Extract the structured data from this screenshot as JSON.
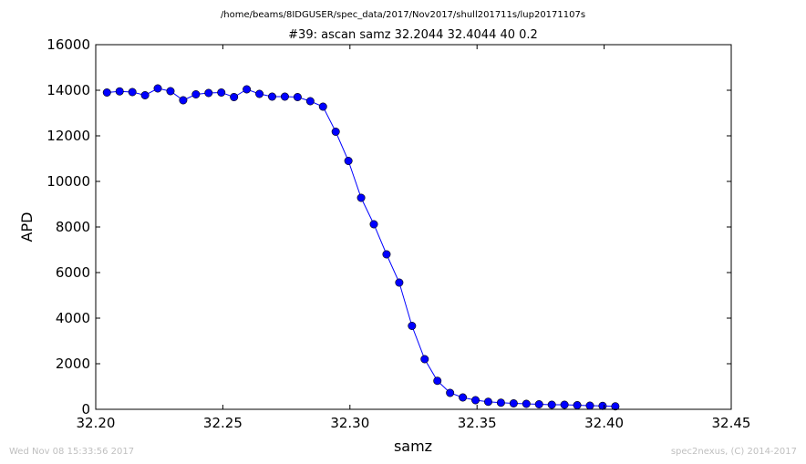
{
  "header": {
    "path": "/home/beams/8IDGUSER/spec_data/2017/Nov2017/shull201711s/lup20171107s"
  },
  "footer": {
    "timestamp": "Wed Nov 08 15:33:56 2017",
    "credit": "spec2nexus, (C) 2014-2017"
  },
  "chart_data": {
    "type": "line",
    "title": "#39: ascan  samz 32.2044 32.4044  40 0.2",
    "xlabel": "samz",
    "ylabel": "APD",
    "xlim": [
      32.2,
      32.45
    ],
    "ylim": [
      0,
      16000
    ],
    "xticks": [
      "32.20",
      "32.25",
      "32.30",
      "32.35",
      "32.40",
      "32.45"
    ],
    "yticks": [
      "0",
      "2000",
      "4000",
      "6000",
      "8000",
      "10000",
      "12000",
      "14000",
      "16000"
    ],
    "grid": false,
    "line_color": "#0000ff",
    "marker": "circle",
    "x": [
      32.2044,
      32.2094,
      32.2144,
      32.2194,
      32.2244,
      32.2294,
      32.2344,
      32.2394,
      32.2444,
      32.2494,
      32.2544,
      32.2594,
      32.2644,
      32.2694,
      32.2744,
      32.2794,
      32.2844,
      32.2894,
      32.2944,
      32.2994,
      32.3044,
      32.3094,
      32.3144,
      32.3194,
      32.3244,
      32.3294,
      32.3344,
      32.3394,
      32.3444,
      32.3494,
      32.3544,
      32.3594,
      32.3644,
      32.3694,
      32.3744,
      32.3794,
      32.3844,
      32.3894,
      32.3944,
      32.3994,
      32.4044
    ],
    "y": [
      13900,
      13950,
      13920,
      13780,
      14080,
      13960,
      13560,
      13820,
      13880,
      13900,
      13700,
      14040,
      13840,
      13720,
      13720,
      13700,
      13520,
      13280,
      12180,
      10900,
      9280,
      8120,
      6800,
      5560,
      3660,
      2200,
      1250,
      720,
      520,
      400,
      330,
      290,
      260,
      240,
      220,
      200,
      200,
      180,
      160,
      150,
      130
    ]
  }
}
